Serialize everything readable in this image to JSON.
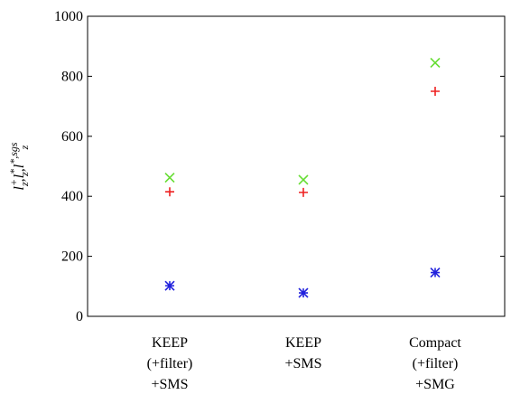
{
  "chart_data": {
    "type": "scatter",
    "ylabel_parts": [
      {
        "base": "l",
        "sub": "z",
        "sup": "+",
        "sep": ","
      },
      {
        "base": "l",
        "sub": "z",
        "sup": "*",
        "sep": ","
      },
      {
        "base": "l",
        "sub": "z",
        "sup": "*,sgs",
        "sep": ""
      }
    ],
    "categories": [
      [
        "KEEP",
        "(+filter)",
        "+SMS"
      ],
      [
        "KEEP",
        "+SMS"
      ],
      [
        "Compact",
        "(+filter)",
        "+SMG"
      ]
    ],
    "series": [
      {
        "marker": "plus",
        "color": "#ee2222",
        "values": [
          415,
          413,
          750
        ]
      },
      {
        "marker": "x",
        "color": "#66dd33",
        "values": [
          462,
          455,
          845
        ]
      },
      {
        "marker": "asterisk",
        "color": "#2222dd",
        "values": [
          102,
          78,
          146
        ]
      }
    ],
    "ylim": [
      0,
      1000
    ],
    "yticks": [
      0,
      200,
      400,
      600,
      800,
      1000
    ]
  }
}
